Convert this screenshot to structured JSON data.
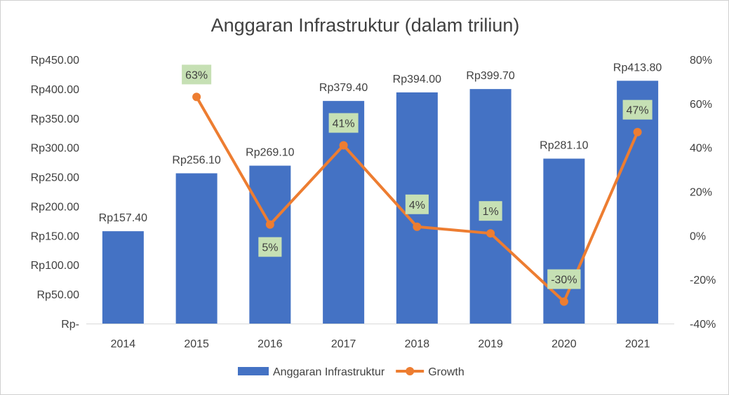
{
  "chart_data": {
    "type": "bar",
    "title": "Anggaran Infrastruktur (dalam triliun)",
    "categories": [
      "2014",
      "2015",
      "2016",
      "2017",
      "2018",
      "2019",
      "2020",
      "2021"
    ],
    "series": [
      {
        "name": "Anggaran Infrastruktur",
        "type": "bar",
        "axis": "left",
        "values": [
          157.4,
          256.1,
          269.1,
          379.4,
          394.0,
          399.7,
          281.1,
          413.8
        ],
        "data_labels": [
          "Rp157.40",
          "Rp256.10",
          "Rp269.10",
          "Rp379.40",
          "Rp394.00",
          "Rp399.70",
          "Rp281.10",
          "Rp413.80"
        ],
        "color": "#4472c4"
      },
      {
        "name": "Growth",
        "type": "line",
        "axis": "right",
        "values": [
          null,
          63,
          5,
          41,
          4,
          1,
          -30,
          47
        ],
        "data_labels": [
          null,
          "63%",
          "5%",
          "41%",
          "4%",
          "1%",
          "-30%",
          "47%"
        ],
        "color": "#ed7d31",
        "label_bg": "#c6e0b4"
      }
    ],
    "y_left": {
      "ylim": [
        0,
        450
      ],
      "ticks": [
        0,
        50,
        100,
        150,
        200,
        250,
        300,
        350,
        400,
        450
      ],
      "tick_labels": [
        "Rp-",
        "Rp50.00",
        "Rp100.00",
        "Rp150.00",
        "Rp200.00",
        "Rp250.00",
        "Rp300.00",
        "Rp350.00",
        "Rp400.00",
        "Rp450.00"
      ]
    },
    "y_right": {
      "ylim": [
        -40,
        80
      ],
      "ticks": [
        -40,
        -20,
        0,
        20,
        40,
        60,
        80
      ],
      "tick_labels": [
        "-40%",
        "-20%",
        "0%",
        "20%",
        "40%",
        "60%",
        "80%"
      ]
    },
    "grid": false,
    "legend_position": "bottom"
  }
}
